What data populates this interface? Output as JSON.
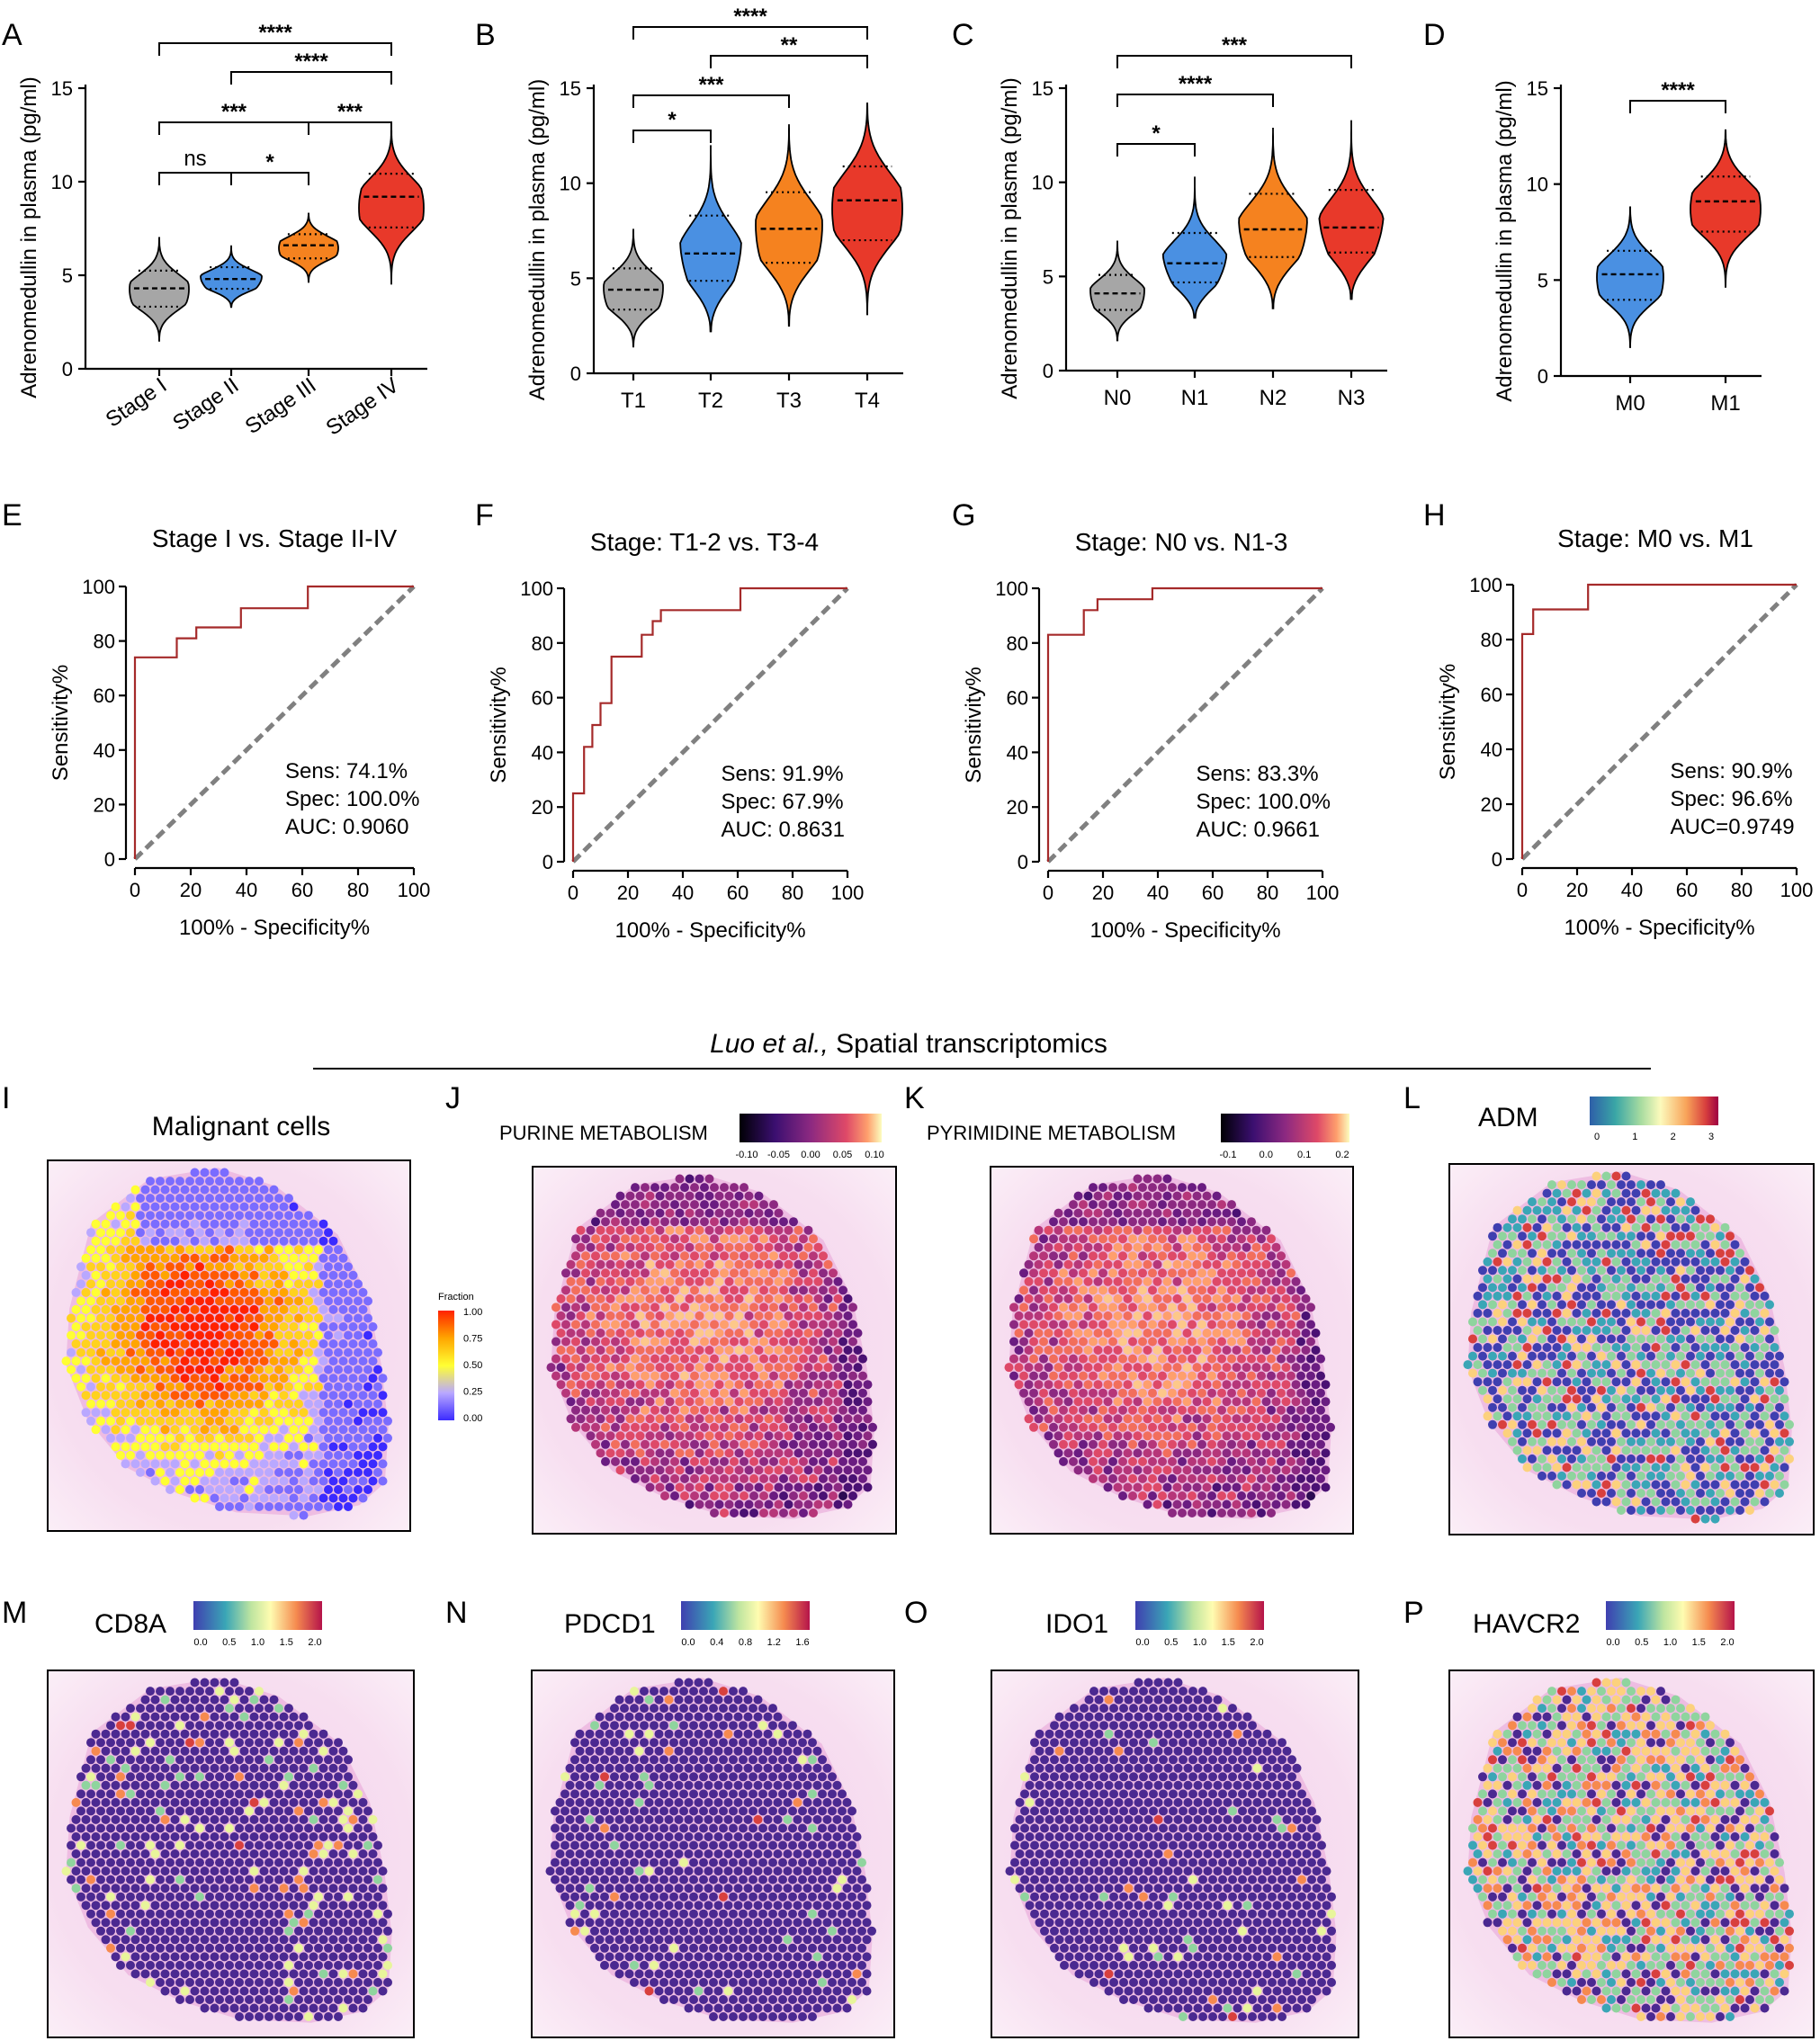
{
  "colors": {
    "grey": "#a6a6a6",
    "blue": "#4a90e2",
    "orange": "#f5821f",
    "red": "#e8392a",
    "roc": "#a52a2a",
    "diag": "#808080"
  },
  "violin_panels": [
    {
      "label": "A",
      "ylabel": "Adrenomedullin in plasma (pg/ml)",
      "yticks": [
        "0",
        "5",
        "10",
        "15"
      ],
      "rotate": true,
      "categories": [
        "Stage I",
        "Stage II",
        "Stage III",
        "Stage IV"
      ],
      "sig": [
        "ns",
        "*",
        "***",
        "***",
        "****",
        "****"
      ]
    },
    {
      "label": "B",
      "ylabel": "Adrenomedullin in plasma (pg/ml)",
      "yticks": [
        "0",
        "5",
        "10",
        "15"
      ],
      "rotate": false,
      "categories": [
        "T1",
        "T2",
        "T3",
        "T4"
      ],
      "sig": [
        "*",
        "***",
        "**",
        "****"
      ]
    },
    {
      "label": "C",
      "ylabel": "Adrenomedullin in plasma (pg/ml)",
      "yticks": [
        "0",
        "5",
        "10",
        "15"
      ],
      "rotate": false,
      "categories": [
        "N0",
        "N1",
        "N2",
        "N3"
      ],
      "sig": [
        "*",
        "****",
        "***"
      ]
    },
    {
      "label": "D",
      "ylabel": "Adrenomedullin in plasma (pg/ml)",
      "yticks": [
        "0",
        "5",
        "10",
        "15"
      ],
      "rotate": false,
      "categories": [
        "M0",
        "M1"
      ],
      "sig": [
        "****"
      ]
    }
  ],
  "roc_panels": [
    {
      "label": "E",
      "title": "Stage I vs. Stage II-IV",
      "sens": "Sens: 74.1%",
      "spec": "Spec: 100.0%",
      "auc": "AUC: 0.9060"
    },
    {
      "label": "F",
      "title": "Stage: T1-2 vs. T3-4",
      "sens": "Sens: 91.9%",
      "spec": "Spec: 67.9%",
      "auc": "AUC: 0.8631"
    },
    {
      "label": "G",
      "title": "Stage: N0 vs. N1-3",
      "sens": "Sens: 83.3%",
      "spec": "Spec: 100.0%",
      "auc": "AUC: 0.9661"
    },
    {
      "label": "H",
      "title": "Stage: M0 vs. M1",
      "sens": "Sens: 90.9%",
      "spec": "Spec: 96.6%",
      "auc": "AUC=0.9749"
    }
  ],
  "roc_axes": {
    "xlabel": "100% - Specificity%",
    "ylabel": "Sensitivity%",
    "ticks": [
      "0",
      "20",
      "40",
      "60",
      "80",
      "100"
    ]
  },
  "spatial": {
    "header_italic": "Luo et al.,",
    "header_rest": " Spatial transcriptomics",
    "panels": [
      {
        "label": "I",
        "title": "Malignant cells",
        "legend_title": "Fraction",
        "legend_ticks": [
          "1.00",
          "0.75",
          "0.50",
          "0.25",
          "0.00"
        ]
      },
      {
        "label": "J",
        "title": "PURINE METABOLISM",
        "legend_ticks": [
          "-0.10",
          "-0.05",
          "0.00",
          "0.05",
          "0.10"
        ]
      },
      {
        "label": "K",
        "title": "PYRIMIDINE METABOLISM",
        "legend_ticks": [
          "-0.1",
          "0.0",
          "0.1",
          "0.2"
        ]
      },
      {
        "label": "L",
        "title": "ADM",
        "legend_ticks": [
          "0",
          "1",
          "2",
          "3"
        ]
      },
      {
        "label": "M",
        "title": "CD8A",
        "legend_ticks": [
          "0.0",
          "0.5",
          "1.0",
          "1.5",
          "2.0"
        ]
      },
      {
        "label": "N",
        "title": "PDCD1",
        "legend_ticks": [
          "0.0",
          "0.4",
          "0.8",
          "1.2",
          "1.6"
        ]
      },
      {
        "label": "O",
        "title": "IDO1",
        "legend_ticks": [
          "0.0",
          "0.5",
          "1.0",
          "1.5",
          "2.0"
        ]
      },
      {
        "label": "P",
        "title": "HAVCR2",
        "legend_ticks": [
          "0.0",
          "0.5",
          "1.0",
          "1.5",
          "2.0"
        ]
      }
    ]
  },
  "chart_data": [
    {
      "type": "violin",
      "panel": "A",
      "ylabel": "Adrenomedullin in plasma (pg/ml)",
      "ylim": [
        0,
        15
      ],
      "categories": [
        "Stage I",
        "Stage II",
        "Stage III",
        "Stage IV"
      ],
      "medians": [
        4.3,
        4.8,
        6.6,
        9.2
      ],
      "ranges": [
        [
          1.5,
          7.0
        ],
        [
          3.3,
          6.6
        ],
        [
          4.6,
          8.3
        ],
        [
          4.5,
          12.7
        ]
      ],
      "colors": [
        "#a6a6a6",
        "#4a90e2",
        "#f5821f",
        "#e8392a"
      ],
      "comparisons": [
        {
          "groups": [
            "Stage I",
            "Stage II"
          ],
          "label": "ns"
        },
        {
          "groups": [
            "Stage II",
            "Stage III"
          ],
          "label": "*"
        },
        {
          "groups": [
            "Stage I",
            "Stage III"
          ],
          "label": "***"
        },
        {
          "groups": [
            "Stage III",
            "Stage IV"
          ],
          "label": "***"
        },
        {
          "groups": [
            "Stage II",
            "Stage IV"
          ],
          "label": "****"
        },
        {
          "groups": [
            "Stage I",
            "Stage IV"
          ],
          "label": "****"
        }
      ]
    },
    {
      "type": "violin",
      "panel": "B",
      "ylabel": "Adrenomedullin in plasma (pg/ml)",
      "ylim": [
        0,
        15
      ],
      "categories": [
        "T1",
        "T2",
        "T3",
        "T4"
      ],
      "medians": [
        4.4,
        6.3,
        7.6,
        9.1
      ],
      "ranges": [
        [
          1.4,
          7.6
        ],
        [
          2.2,
          12.0
        ],
        [
          2.5,
          13.1
        ],
        [
          3.1,
          14.2
        ]
      ],
      "colors": [
        "#a6a6a6",
        "#4a90e2",
        "#f5821f",
        "#e8392a"
      ],
      "comparisons": [
        {
          "groups": [
            "T1",
            "T2"
          ],
          "label": "*"
        },
        {
          "groups": [
            "T1",
            "T3"
          ],
          "label": "***"
        },
        {
          "groups": [
            "T2",
            "T4"
          ],
          "label": "**"
        },
        {
          "groups": [
            "T1",
            "T4"
          ],
          "label": "****"
        }
      ]
    },
    {
      "type": "violin",
      "panel": "C",
      "ylabel": "Adrenomedullin in plasma (pg/ml)",
      "ylim": [
        0,
        15
      ],
      "categories": [
        "N0",
        "N1",
        "N2",
        "N3"
      ],
      "medians": [
        4.1,
        5.7,
        7.5,
        7.6
      ],
      "ranges": [
        [
          1.6,
          6.9
        ],
        [
          2.8,
          10.3
        ],
        [
          3.3,
          12.9
        ],
        [
          3.8,
          13.3
        ]
      ],
      "colors": [
        "#a6a6a6",
        "#4a90e2",
        "#f5821f",
        "#e8392a"
      ],
      "comparisons": [
        {
          "groups": [
            "N0",
            "N1"
          ],
          "label": "*"
        },
        {
          "groups": [
            "N0",
            "N2"
          ],
          "label": "****"
        },
        {
          "groups": [
            "N0",
            "N3"
          ],
          "label": "***"
        }
      ]
    },
    {
      "type": "violin",
      "panel": "D",
      "ylabel": "Adrenomedullin in plasma (pg/ml)",
      "ylim": [
        0,
        15
      ],
      "categories": [
        "M0",
        "M1"
      ],
      "medians": [
        5.3,
        9.1
      ],
      "ranges": [
        [
          1.5,
          8.8
        ],
        [
          4.6,
          12.8
        ]
      ],
      "colors": [
        "#4a90e2",
        "#e8392a"
      ],
      "comparisons": [
        {
          "groups": [
            "M0",
            "M1"
          ],
          "label": "****"
        }
      ]
    },
    {
      "type": "line",
      "panel": "E",
      "title": "Stage I vs. Stage II-IV",
      "xlabel": "100% - Specificity%",
      "ylabel": "Sensitivity%",
      "xlim": [
        0,
        100
      ],
      "ylim": [
        0,
        100
      ],
      "x": [
        0,
        0,
        0,
        15,
        15,
        22,
        22,
        38,
        38,
        62,
        62,
        100
      ],
      "y": [
        0,
        0,
        74,
        74,
        81,
        81,
        85,
        85,
        92,
        92,
        100,
        100
      ]
    },
    {
      "type": "line",
      "panel": "F",
      "title": "Stage: T1-2 vs. T3-4",
      "xlabel": "100% - Specificity%",
      "ylabel": "Sensitivity%",
      "xlim": [
        0,
        100
      ],
      "ylim": [
        0,
        100
      ],
      "x": [
        0,
        0,
        4,
        4,
        7,
        7,
        10,
        10,
        14,
        14,
        20,
        20,
        25,
        25,
        29,
        29,
        32,
        32,
        61,
        61,
        100
      ],
      "y": [
        0,
        25,
        25,
        42,
        42,
        50,
        50,
        58,
        58,
        75,
        75,
        75,
        75,
        83,
        83,
        88,
        88,
        92,
        92,
        100,
        100
      ]
    },
    {
      "type": "line",
      "panel": "G",
      "title": "Stage: N0 vs. N1-3",
      "xlabel": "100% - Specificity%",
      "ylabel": "Sensitivity%",
      "xlim": [
        0,
        100
      ],
      "ylim": [
        0,
        100
      ],
      "x": [
        0,
        0,
        13,
        13,
        18,
        18,
        38,
        38,
        100
      ],
      "y": [
        0,
        83,
        83,
        92,
        92,
        96,
        96,
        100,
        100
      ]
    },
    {
      "type": "line",
      "panel": "H",
      "title": "Stage: M0 vs. M1",
      "xlabel": "100% - Specificity%",
      "ylabel": "Sensitivity%",
      "xlim": [
        0,
        100
      ],
      "ylim": [
        0,
        100
      ],
      "x": [
        0,
        0,
        4,
        4,
        24,
        24,
        100
      ],
      "y": [
        0,
        82,
        82,
        91,
        91,
        100,
        100
      ]
    }
  ]
}
